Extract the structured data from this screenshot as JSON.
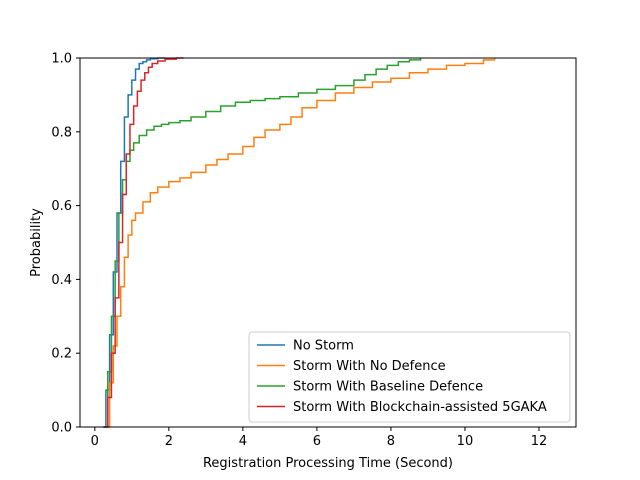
{
  "chart_data": {
    "type": "line",
    "title": "",
    "xlabel": "Registration Processing Time (Second)",
    "ylabel": "Probability",
    "xlim": [
      -0.4,
      13.0
    ],
    "ylim": [
      0.0,
      1.0
    ],
    "xticks": [
      0,
      2,
      4,
      6,
      8,
      10,
      12
    ],
    "yticks": [
      0.0,
      0.2,
      0.4,
      0.6,
      0.8,
      1.0
    ],
    "xtick_labels": [
      "0",
      "2",
      "4",
      "6",
      "8",
      "10",
      "12"
    ],
    "ytick_labels": [
      "0.0",
      "0.2",
      "0.4",
      "0.6",
      "0.8",
      "1.0"
    ],
    "grid": false,
    "legend_position": "lower-right",
    "step": true,
    "series": [
      {
        "name": "No Storm",
        "color": "#1f77b4",
        "x": [
          0.22,
          0.3,
          0.4,
          0.5,
          0.6,
          0.7,
          0.8,
          0.9,
          1.0,
          1.1,
          1.2,
          1.3,
          1.4,
          1.5,
          1.7,
          1.9
        ],
        "y": [
          0.0,
          0.1,
          0.25,
          0.42,
          0.58,
          0.72,
          0.84,
          0.9,
          0.94,
          0.97,
          0.985,
          0.99,
          0.995,
          0.998,
          1.0,
          1.0
        ]
      },
      {
        "name": "Storm With No Defence",
        "color": "#ff7f0e",
        "x": [
          0.28,
          0.4,
          0.5,
          0.6,
          0.7,
          0.8,
          0.9,
          1.0,
          1.1,
          1.3,
          1.5,
          1.7,
          2.0,
          2.3,
          2.6,
          3.0,
          3.3,
          3.6,
          4.0,
          4.3,
          4.6,
          5.0,
          5.3,
          5.6,
          6.0,
          6.5,
          7.0,
          7.5,
          8.0,
          8.5,
          9.0,
          9.5,
          10.0,
          10.5,
          10.8
        ],
        "y": [
          0.0,
          0.12,
          0.22,
          0.3,
          0.38,
          0.46,
          0.52,
          0.56,
          0.58,
          0.61,
          0.635,
          0.65,
          0.665,
          0.675,
          0.69,
          0.71,
          0.725,
          0.74,
          0.76,
          0.785,
          0.805,
          0.82,
          0.84,
          0.865,
          0.885,
          0.905,
          0.92,
          0.935,
          0.945,
          0.96,
          0.97,
          0.98,
          0.985,
          0.995,
          1.0
        ]
      },
      {
        "name": "Storm With Baseline Defence",
        "color": "#2ca02c",
        "x": [
          0.25,
          0.35,
          0.45,
          0.55,
          0.65,
          0.75,
          0.85,
          0.95,
          1.05,
          1.2,
          1.4,
          1.6,
          1.8,
          2.0,
          2.3,
          2.6,
          3.0,
          3.4,
          3.8,
          4.2,
          4.6,
          5.0,
          5.5,
          6.0,
          6.5,
          7.0,
          7.3,
          7.6,
          7.9,
          8.2,
          8.5,
          8.8
        ],
        "y": [
          0.0,
          0.15,
          0.3,
          0.45,
          0.58,
          0.67,
          0.72,
          0.75,
          0.77,
          0.79,
          0.805,
          0.815,
          0.82,
          0.825,
          0.83,
          0.84,
          0.855,
          0.87,
          0.88,
          0.885,
          0.89,
          0.895,
          0.905,
          0.915,
          0.925,
          0.94,
          0.955,
          0.97,
          0.98,
          0.99,
          0.995,
          1.0
        ]
      },
      {
        "name": "Storm With Blockchain-assisted 5GAKA",
        "color": "#d62728",
        "x": [
          0.25,
          0.35,
          0.45,
          0.55,
          0.65,
          0.75,
          0.85,
          0.95,
          1.05,
          1.15,
          1.25,
          1.35,
          1.45,
          1.55,
          1.7,
          1.9,
          2.2,
          2.4
        ],
        "y": [
          0.0,
          0.08,
          0.2,
          0.35,
          0.5,
          0.63,
          0.74,
          0.82,
          0.87,
          0.91,
          0.94,
          0.96,
          0.975,
          0.985,
          0.992,
          0.997,
          1.0,
          1.0
        ]
      }
    ]
  }
}
